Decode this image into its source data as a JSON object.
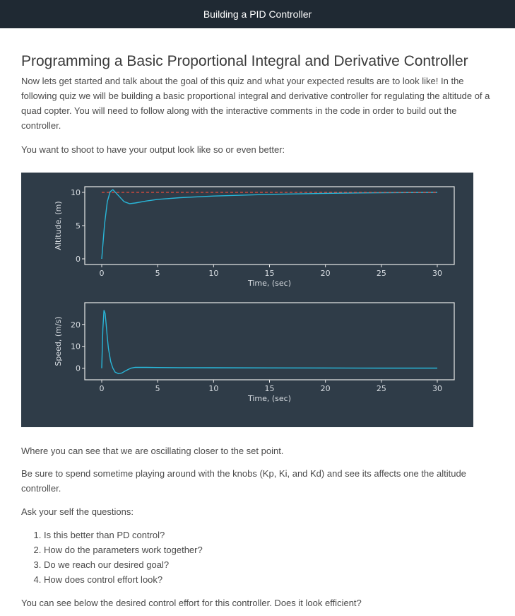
{
  "header": {
    "title": "Building a PID Controller"
  },
  "page": {
    "heading": "Programming a Basic Proportional Integral and Derivative Controller",
    "intro": "Now lets get started and talk about the goal of this quiz and what your expected results are to look like! In the following quiz we will be building a basic proportional integral and derivative controller for regulating the altitude of a quad copter. You will need to follow along with the interactive comments in the code in order to build out the controller.",
    "shoot": "You want to shoot to have your output look like so or even better:",
    "oscillating": "Where you can see that we are oscillating closer to the set point.",
    "knobs": "Be sure to spend sometime playing around with the knobs (Kp, Ki, and Kd) and see its affects one the altitude controller.",
    "ask": "Ask your self the questions:",
    "questions": [
      "Is this better than PD control?",
      "How do the parameters work together?",
      "Do we reach our desired goal?",
      "How does control effort look?"
    ],
    "below": "You can see below the desired control effort for this controller. Does it look efficient?"
  },
  "chart_data": [
    {
      "type": "line",
      "xlabel": "Time, (sec)",
      "ylabel": "Altitude, (m)",
      "xlim": [
        0,
        30
      ],
      "ylim": [
        0,
        10
      ],
      "xticks": [
        0,
        5,
        10,
        15,
        20,
        25,
        30
      ],
      "yticks": [
        0,
        5,
        10
      ],
      "colors": {
        "response": "#29b6d8",
        "setpoint": "#e74c3c"
      },
      "series": [
        {
          "x": [
            0,
            0.25,
            0.5,
            0.75,
            1.0,
            1.5,
            2.0,
            2.5,
            3.0,
            4,
            5,
            7,
            10,
            15,
            20,
            25,
            30
          ],
          "values": [
            0,
            5.2,
            8.6,
            10.1,
            10.4,
            9.5,
            8.6,
            8.3,
            8.4,
            8.7,
            8.95,
            9.2,
            9.45,
            9.7,
            9.85,
            9.95,
            10.0
          ]
        },
        {
          "x": [
            0,
            30
          ],
          "values": [
            10,
            10
          ]
        }
      ]
    },
    {
      "type": "line",
      "xlabel": "Time, (sec)",
      "ylabel": "Speed, (m/s)",
      "xlim": [
        0,
        30
      ],
      "ylim": [
        -4,
        28
      ],
      "xticks": [
        0,
        5,
        10,
        15,
        20,
        25,
        30
      ],
      "yticks": [
        0,
        10,
        20
      ],
      "colors": {
        "response": "#29b6d8"
      },
      "series": [
        {
          "x": [
            0,
            0.1,
            0.2,
            0.3,
            0.4,
            0.5,
            0.6,
            0.8,
            1.0,
            1.2,
            1.5,
            1.8,
            2.2,
            2.6,
            3.0,
            4,
            5,
            7,
            10,
            15,
            20,
            25,
            30
          ],
          "values": [
            0,
            18,
            26.5,
            25,
            20,
            14,
            9,
            3,
            0,
            -1.8,
            -2.5,
            -2.2,
            -1,
            0,
            0.4,
            0.35,
            0.3,
            0.25,
            0.2,
            0.15,
            0.1,
            0.05,
            0.05
          ]
        }
      ]
    }
  ]
}
